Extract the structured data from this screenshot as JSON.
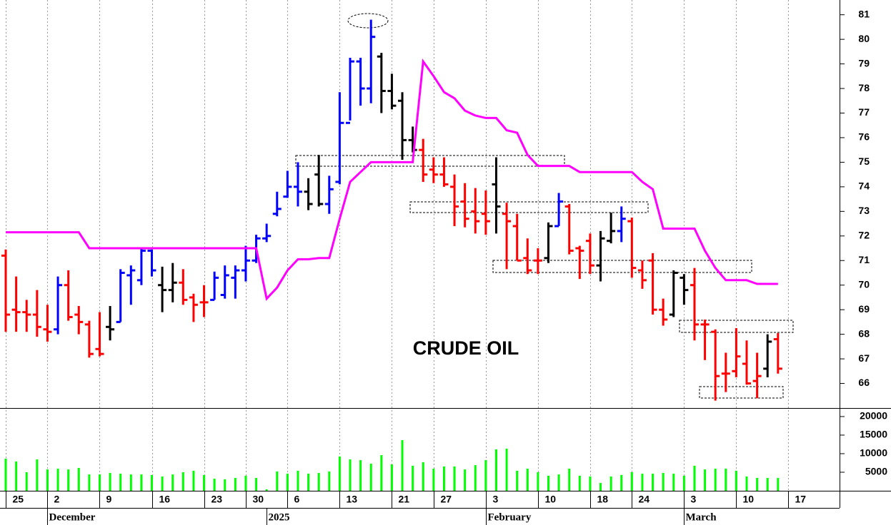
{
  "chart_data": [
    {
      "type": "ohlc",
      "title": "CRUDE OIL",
      "x": [
        0,
        1,
        2,
        3,
        4,
        5,
        6,
        7,
        8,
        9,
        10,
        11,
        12,
        13,
        14,
        15,
        16,
        17,
        18,
        19,
        20,
        21,
        22,
        23,
        24,
        25,
        26,
        27,
        28,
        29,
        30,
        31,
        32,
        33,
        34,
        35,
        36,
        37,
        38,
        39,
        40,
        41,
        42,
        43,
        44,
        45,
        46,
        47,
        48,
        49,
        50,
        51,
        52,
        53,
        54,
        55,
        56,
        57,
        58,
        59,
        60,
        61,
        62,
        63,
        64,
        65,
        66,
        67,
        68,
        69,
        70,
        71,
        72,
        73,
        74
      ],
      "open": [
        71.2,
        69.0,
        68.9,
        68.8,
        68.2,
        68.2,
        70.0,
        68.8,
        68.4,
        67.4,
        68.3,
        68.5,
        70.4,
        70.2,
        71.4,
        70.0,
        69.8,
        70.1,
        69.5,
        69.3,
        69.4,
        69.6,
        70.3,
        70.6,
        71.0,
        71.9,
        72.9,
        73.6,
        74.0,
        73.8,
        74.5,
        73.3,
        74.2,
        76.6,
        79.1,
        78.0,
        79.3,
        77.9,
        77.5,
        75.9,
        75.5,
        74.7,
        74.5,
        74.0,
        73.4,
        73.0,
        72.9,
        74.1,
        72.9,
        72.4,
        71.1,
        71.0,
        71.1,
        72.4,
        73.2,
        71.5,
        71.8,
        70.8,
        71.8,
        72.2,
        72.6,
        70.6,
        71.0,
        69.0,
        68.8,
        70.3,
        70.0,
        68.4,
        68.1,
        66.4,
        66.5,
        66.8,
        66.1,
        66.6,
        67.8
      ],
      "high": [
        71.45,
        70.35,
        69.4,
        69.8,
        69.2,
        70.35,
        70.6,
        69.15,
        68.55,
        68.9,
        69.15,
        70.65,
        70.8,
        71.5,
        71.45,
        70.75,
        70.9,
        70.65,
        69.65,
        70.0,
        70.55,
        70.8,
        70.8,
        71.6,
        72.05,
        72.5,
        73.8,
        74.65,
        75.0,
        74.35,
        75.3,
        74.45,
        77.85,
        79.25,
        79.25,
        80.8,
        79.45,
        78.6,
        77.85,
        76.45,
        75.95,
        75.2,
        75.2,
        74.5,
        74.15,
        73.95,
        73.85,
        75.2,
        73.35,
        72.9,
        71.9,
        71.5,
        72.55,
        73.75,
        73.3,
        71.6,
        72.1,
        72.2,
        72.95,
        73.2,
        72.75,
        71.0,
        71.3,
        69.45,
        70.6,
        70.45,
        70.7,
        68.6,
        68.2,
        67.25,
        68.25,
        67.75,
        67.25,
        68.0,
        68.05
      ],
      "low": [
        68.1,
        68.1,
        68.1,
        67.9,
        67.7,
        68.0,
        68.55,
        68.0,
        67.05,
        67.1,
        67.75,
        68.5,
        69.2,
        70.0,
        70.35,
        68.9,
        69.3,
        69.2,
        68.5,
        68.7,
        69.4,
        69.45,
        69.45,
        70.15,
        70.9,
        71.75,
        72.8,
        73.55,
        73.2,
        73.05,
        73.2,
        72.9,
        74.1,
        76.7,
        77.3,
        77.4,
        77.0,
        77.15,
        75.1,
        75.4,
        74.2,
        74.15,
        74.0,
        72.4,
        72.35,
        72.1,
        72.05,
        72.1,
        70.65,
        71.0,
        70.45,
        70.45,
        70.9,
        72.4,
        71.25,
        70.25,
        70.45,
        70.15,
        71.7,
        71.75,
        70.3,
        69.85,
        68.8,
        68.35,
        68.7,
        69.2,
        67.75,
        66.95,
        65.3,
        65.65,
        66.25,
        65.95,
        65.4,
        66.25,
        66.4
      ],
      "close": [
        68.8,
        68.9,
        68.8,
        68.3,
        68.1,
        70.0,
        68.7,
        68.5,
        67.2,
        67.2,
        68.2,
        70.5,
        70.6,
        71.4,
        70.6,
        69.8,
        70.1,
        69.4,
        69.2,
        69.3,
        70.3,
        70.4,
        70.6,
        71.0,
        71.9,
        72.0,
        73.1,
        74.0,
        73.8,
        73.3,
        73.3,
        73.9,
        76.6,
        79.1,
        78.0,
        80.1,
        77.9,
        77.3,
        75.9,
        75.5,
        74.5,
        74.5,
        74.1,
        73.2,
        72.7,
        72.6,
        72.6,
        73.2,
        72.6,
        71.0,
        70.6,
        71.0,
        72.4,
        73.4,
        71.4,
        71.4,
        70.8,
        71.9,
        72.2,
        72.7,
        70.7,
        70.2,
        69.0,
        68.6,
        70.5,
        69.8,
        68.4,
        68.4,
        66.3,
        66.4,
        67.1,
        66.0,
        66.3,
        67.7,
        66.6
      ],
      "bar_colors": [
        "#ff0000",
        "#ff0000",
        "#ff0000",
        "#ff0000",
        "#ff0000",
        "#0000ff",
        "#ff0000",
        "#ff0000",
        "#ff0000",
        "#ff0000",
        "#000000",
        "#0000ff",
        "#0000ff",
        "#0000ff",
        "#0000ff",
        "#000000",
        "#000000",
        "#ff0000",
        "#ff0000",
        "#ff0000",
        "#0000ff",
        "#0000ff",
        "#0000ff",
        "#0000ff",
        "#0000ff",
        "#0000ff",
        "#0000ff",
        "#0000ff",
        "#0000ff",
        "#000000",
        "#000000",
        "#0000ff",
        "#0000ff",
        "#0000ff",
        "#0000ff",
        "#0000ff",
        "#000000",
        "#000000",
        "#000000",
        "#000000",
        "#ff0000",
        "#ff0000",
        "#ff0000",
        "#ff0000",
        "#ff0000",
        "#ff0000",
        "#ff0000",
        "#000000",
        "#ff0000",
        "#ff0000",
        "#ff0000",
        "#ff0000",
        "#000000",
        "#0000ff",
        "#ff0000",
        "#ff0000",
        "#ff0000",
        "#000000",
        "#000000",
        "#0000ff",
        "#ff0000",
        "#ff0000",
        "#ff0000",
        "#ff0000",
        "#000000",
        "#000000",
        "#ff0000",
        "#ff0000",
        "#ff0000",
        "#ff0000",
        "#ff0000",
        "#ff0000",
        "#ff0000",
        "#000000",
        "#ff0000"
      ],
      "line": {
        "color": "#ff00ff",
        "values": [
          72.15,
          72.15,
          72.15,
          72.15,
          72.15,
          72.15,
          72.15,
          72.15,
          71.5,
          71.5,
          71.5,
          71.5,
          71.5,
          71.5,
          71.5,
          71.5,
          71.5,
          71.5,
          71.5,
          71.5,
          71.5,
          71.5,
          71.5,
          71.5,
          71.5,
          69.45,
          69.9,
          70.6,
          71.05,
          71.05,
          71.1,
          71.1,
          72.7,
          74.2,
          74.6,
          75.0,
          75.0,
          75.0,
          75.0,
          75.0,
          79.1,
          78.5,
          77.85,
          77.6,
          77.1,
          76.9,
          76.8,
          76.8,
          76.3,
          76.2,
          75.3,
          74.85,
          74.85,
          74.85,
          74.85,
          74.6,
          74.6,
          74.6,
          74.6,
          74.6,
          74.6,
          74.2,
          73.9,
          72.3,
          72.3,
          72.3,
          72.3,
          71.4,
          70.7,
          70.2,
          70.2,
          70.2,
          70.05,
          70.05,
          70.05
        ]
      },
      "ylim": [
        65,
        81.6
      ],
      "yticks": [
        66,
        67,
        68,
        69,
        70,
        71,
        72,
        73,
        74,
        75,
        76,
        77,
        78,
        79,
        80,
        81
      ],
      "xlim": [
        -0.55,
        79.9
      ],
      "xticks": [
        {
          "value": 0,
          "label": "25"
        },
        {
          "value": 4,
          "label": "2"
        },
        {
          "value": 9,
          "label": "9"
        },
        {
          "value": 14,
          "label": "16"
        },
        {
          "value": 19,
          "label": "23"
        },
        {
          "value": 23,
          "label": "30"
        },
        {
          "value": 27,
          "label": "6"
        },
        {
          "value": 32,
          "label": "13"
        },
        {
          "value": 37,
          "label": "21"
        },
        {
          "value": 41,
          "label": "27"
        },
        {
          "value": 46,
          "label": "3"
        },
        {
          "value": 51,
          "label": "10"
        },
        {
          "value": 56,
          "label": "18"
        },
        {
          "value": 60,
          "label": "24"
        },
        {
          "value": 65,
          "label": "3"
        },
        {
          "value": 70,
          "label": "10"
        },
        {
          "value": 75,
          "label": "17"
        }
      ],
      "month_labels": [
        {
          "value": 4,
          "label": "December"
        },
        {
          "value": 25,
          "label": "2025"
        },
        {
          "value": 46,
          "label": "February"
        },
        {
          "value": 65,
          "label": "March"
        }
      ],
      "grid": true
    },
    {
      "type": "bar",
      "color": "#00ff00",
      "x": [
        0,
        1,
        2,
        3,
        4,
        5,
        6,
        7,
        8,
        9,
        10,
        11,
        12,
        13,
        14,
        15,
        16,
        17,
        18,
        19,
        20,
        21,
        22,
        23,
        24,
        25,
        26,
        27,
        28,
        29,
        30,
        31,
        32,
        33,
        34,
        35,
        36,
        37,
        38,
        39,
        40,
        41,
        42,
        43,
        44,
        45,
        46,
        47,
        48,
        49,
        50,
        51,
        52,
        53,
        54,
        55,
        56,
        57,
        58,
        59,
        60,
        61,
        62,
        63,
        64,
        65,
        66,
        67,
        68,
        69,
        70,
        71,
        72,
        73,
        74
      ],
      "values": [
        8650,
        7900,
        5000,
        8450,
        5750,
        5950,
        5750,
        6150,
        4400,
        4400,
        4800,
        4600,
        4400,
        4400,
        4250,
        3850,
        4400,
        5000,
        5400,
        4250,
        3250,
        3100,
        3450,
        4050,
        3450,
        400,
        5200,
        4600,
        5400,
        4600,
        4800,
        5200,
        9250,
        8450,
        8250,
        7300,
        9600,
        7100,
        13650,
        6750,
        7700,
        5950,
        6550,
        6550,
        5750,
        6900,
        8250,
        11150,
        11350,
        5400,
        5950,
        5000,
        4050,
        4400,
        5950,
        4050,
        3850,
        2100,
        3850,
        4250,
        5000,
        4600,
        4600,
        4800,
        4600,
        4050,
        6750,
        5750,
        5950,
        5950,
        5400,
        3850,
        3450,
        3450,
        3450
      ],
      "ylim": [
        0,
        22300
      ],
      "yticks": [
        5000,
        10000,
        15000,
        20000
      ]
    }
  ]
}
